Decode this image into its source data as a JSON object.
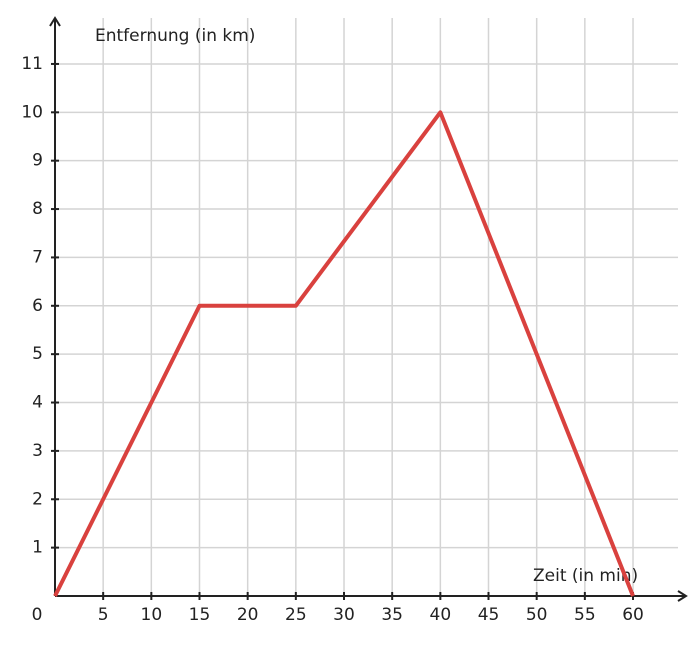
{
  "chart_data": {
    "type": "line",
    "x_label": "Zeit (in min)",
    "y_label": "Entfernung (in km)",
    "x": [
      0,
      15,
      25,
      40,
      60
    ],
    "series": [
      {
        "values": [
          0,
          6,
          6,
          10,
          0
        ],
        "color": "#d9413e"
      }
    ],
    "xlim": [
      0,
      65.5
    ],
    "ylim": [
      0,
      11.95
    ],
    "xticks": [
      0,
      5,
      10,
      15,
      20,
      25,
      30,
      35,
      40,
      45,
      50,
      55,
      60
    ],
    "yticks": [
      1,
      2,
      3,
      4,
      5,
      6,
      7,
      8,
      9,
      10,
      11
    ],
    "grid": true
  }
}
